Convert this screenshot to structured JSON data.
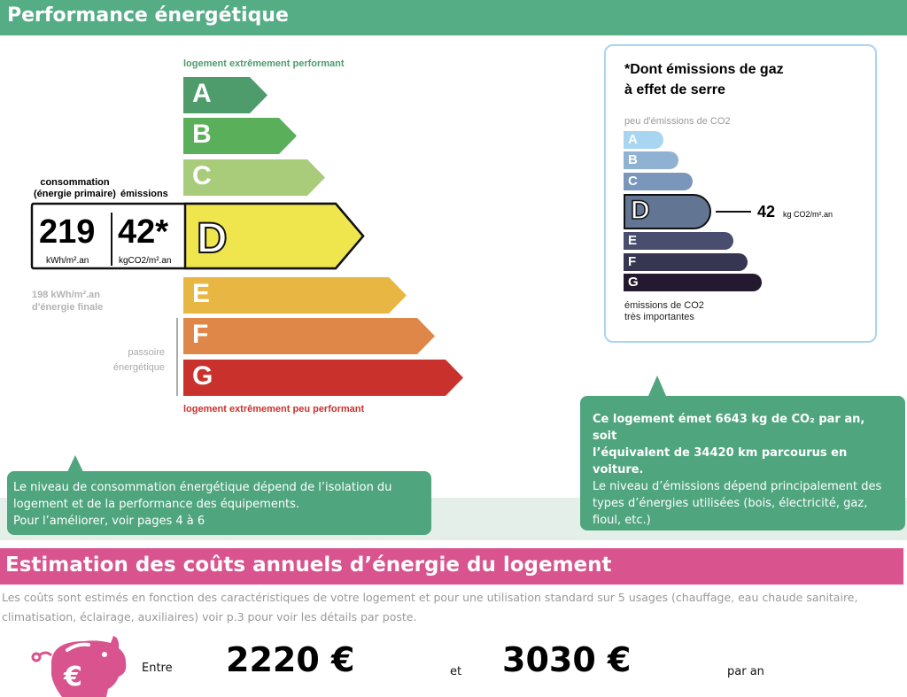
{
  "header": {
    "title": "Performance énergétique"
  },
  "energy_scale": {
    "top_caption": "logement extrêmement performant",
    "bottom_caption": "logement extrêmement peu performant",
    "classes": [
      {
        "letter": "A",
        "color": "#4e9c6c"
      },
      {
        "letter": "B",
        "color": "#5ab05a"
      },
      {
        "letter": "C",
        "color": "#a8cc7a"
      },
      {
        "letter": "D",
        "color": "#efe54d"
      },
      {
        "letter": "E",
        "color": "#e8b642"
      },
      {
        "letter": "F",
        "color": "#de8748"
      },
      {
        "letter": "G",
        "color": "#c9322c"
      }
    ],
    "current_class": "D",
    "consumption_label_1": "consommation",
    "consumption_label_2": "(énergie primaire)",
    "emissions_label": "émissions",
    "consumption_value": "219",
    "consumption_unit": "kWh/m².an",
    "emissions_value": "42*",
    "emissions_unit": "kgCO2/m².an",
    "final_energy_1": "198 kWh/m².an",
    "final_energy_2": "d'énergie finale",
    "passoire_1": "passoire",
    "passoire_2": "énergétique"
  },
  "ghg": {
    "title_1": "*Dont émissions de gaz",
    "title_2": "à effet de serre",
    "top_caption": "peu d'émissions de CO2",
    "bottom_caption_1": "émissions de CO2",
    "bottom_caption_2": "très importantes",
    "classes": [
      {
        "letter": "A",
        "color": "#a8d5f0"
      },
      {
        "letter": "B",
        "color": "#8fb2d3"
      },
      {
        "letter": "C",
        "color": "#7a97bb"
      },
      {
        "letter": "D",
        "color": "#627592"
      },
      {
        "letter": "E",
        "color": "#4a4e6e"
      },
      {
        "letter": "F",
        "color": "#363552"
      },
      {
        "letter": "G",
        "color": "#24192f"
      }
    ],
    "value": "42",
    "unit": "kg CO2/m².an"
  },
  "bubble_left": {
    "line1": "Le niveau de consommation énergétique dépend de l’isolation du",
    "line2": "logement et de la performance des équipements.",
    "line3": "Pour l’améliorer, voir pages 4 à 6"
  },
  "bubble_right": {
    "bold1": "Ce logement émet 6643 kg de CO₂ par an, soit",
    "bold2": "l’équivalent de 34420  km parcourus en voiture.",
    "line1": "Le niveau d’émissions dépend principalement des",
    "line2": "types d’énergies utilisées (bois, électricité, gaz,",
    "line3": "fioul, etc.)"
  },
  "costs": {
    "title": "Estimation des coûts annuels d’énergie du logement",
    "note_1": "Les coûts sont estimés en fonction des caractéristiques de votre logement et pour une utilisation standard sur 5 usages (chauffage, eau chaude sanitaire,",
    "note_2": "climatisation, éclairage, auxiliaires) voir p.3 pour voir les détails par poste.",
    "between": "Entre",
    "min": "2220 €",
    "and": "et",
    "max": "3030 €",
    "per_year": "par an"
  }
}
